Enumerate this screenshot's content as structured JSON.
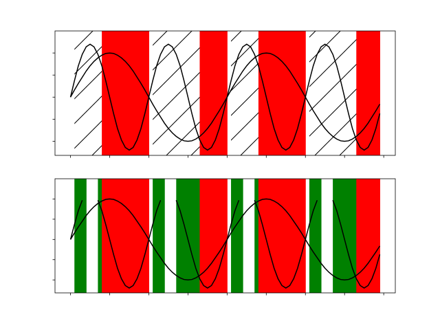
{
  "chart_data": [
    {
      "type": "line",
      "above_color": "#ff0000",
      "below_hatch": "/",
      "x": [
        0,
        0.025,
        0.05,
        0.075,
        0.1,
        0.125,
        0.15,
        0.175,
        0.2,
        0.225,
        0.25,
        0.275,
        0.3,
        0.325,
        0.35,
        0.375,
        0.4,
        0.425,
        0.45,
        0.475,
        0.5,
        0.525,
        0.55,
        0.575,
        0.6,
        0.625,
        0.65,
        0.675,
        0.7,
        0.725,
        0.75,
        0.775,
        0.8,
        0.825,
        0.85,
        0.875,
        0.9,
        0.925,
        0.95,
        0.975,
        1,
        1.025,
        1.05,
        1.075,
        1.1,
        1.125,
        1.15,
        1.175,
        1.2,
        1.225,
        1.25,
        1.275,
        1.3,
        1.325,
        1.35,
        1.375,
        1.4,
        1.425,
        1.45,
        1.475,
        1.5,
        1.525,
        1.55,
        1.575,
        1.6,
        1.625,
        1.65,
        1.675,
        1.7,
        1.725,
        1.75,
        1.775,
        1.8,
        1.825,
        1.85,
        1.875,
        1.9,
        1.925,
        1.95,
        1.975
      ],
      "series": [
        {
          "color": "#000000",
          "values": [
            0,
            0.16,
            0.31,
            0.45,
            0.59,
            0.71,
            0.81,
            0.89,
            0.95,
            0.99,
            1,
            0.99,
            0.95,
            0.89,
            0.81,
            0.71,
            0.59,
            0.45,
            0.31,
            0.16,
            0,
            -0.16,
            -0.31,
            -0.45,
            -0.59,
            -0.71,
            -0.81,
            -0.89,
            -0.95,
            -0.99,
            -1,
            -0.99,
            -0.95,
            -0.89,
            -0.81,
            -0.71,
            -0.59,
            -0.45,
            -0.31,
            -0.16,
            0,
            0.16,
            0.31,
            0.45,
            0.59,
            0.71,
            0.81,
            0.89,
            0.95,
            0.99,
            1,
            0.99,
            0.95,
            0.89,
            0.81,
            0.71,
            0.59,
            0.45,
            0.31,
            0.16,
            0,
            -0.16,
            -0.31,
            -0.45,
            -0.59,
            -0.71,
            -0.81,
            -0.89,
            -0.95,
            -0.99,
            -1,
            -0.99,
            -0.95,
            -0.89,
            -0.81,
            -0.71,
            -0.59,
            -0.45,
            -0.31,
            -0.16
          ]
        },
        {
          "color": "#000000",
          "values": [
            0,
            0.37,
            0.71,
            0.97,
            1.14,
            1.2,
            1.14,
            0.97,
            0.71,
            0.37,
            0,
            -0.37,
            -0.71,
            -0.97,
            -1.14,
            -1.2,
            -1.14,
            -0.97,
            -0.71,
            -0.37,
            0,
            0.37,
            0.71,
            0.97,
            1.14,
            1.2,
            1.14,
            0.97,
            0.71,
            0.37,
            0,
            -0.37,
            -0.71,
            -0.97,
            -1.14,
            -1.2,
            -1.14,
            -0.97,
            -0.71,
            -0.37,
            0,
            0.37,
            0.71,
            0.97,
            1.14,
            1.2,
            1.14,
            0.97,
            0.71,
            0.37,
            0,
            -0.37,
            -0.71,
            -0.97,
            -1.14,
            -1.2,
            -1.14,
            -0.97,
            -0.71,
            -0.37,
            0,
            0.37,
            0.71,
            0.97,
            1.14,
            1.2,
            1.14,
            0.97,
            0.71,
            0.37,
            0,
            -0.37,
            -0.71,
            -0.97,
            -1.14,
            -1.2,
            -1.14,
            -0.97,
            -0.71,
            -0.37
          ]
        }
      ],
      "xlim": [
        -0.099,
        2.074
      ],
      "xticks": [
        0,
        0.25,
        0.5,
        0.75,
        1,
        1.25,
        1.5,
        1.75,
        2
      ],
      "ylim": [
        -1.32,
        1.5
      ],
      "yticks": [
        -1,
        -0.5,
        0,
        0.5,
        1
      ]
    },
    {
      "type": "line",
      "above_color": "#ff0000",
      "below_color": "#008000",
      "x": [
        0,
        0.025,
        0.05,
        0.075,
        0.1,
        0.125,
        0.15,
        0.175,
        0.2,
        0.225,
        0.25,
        0.275,
        0.3,
        0.325,
        0.35,
        0.375,
        0.4,
        0.425,
        0.45,
        0.475,
        0.5,
        0.525,
        0.55,
        0.575,
        0.6,
        0.625,
        0.65,
        0.675,
        0.7,
        0.725,
        0.75,
        0.775,
        0.8,
        0.825,
        0.85,
        0.875,
        0.9,
        0.925,
        0.95,
        0.975,
        1,
        1.025,
        1.05,
        1.075,
        1.1,
        1.125,
        1.15,
        1.175,
        1.2,
        1.225,
        1.25,
        1.275,
        1.3,
        1.325,
        1.35,
        1.375,
        1.4,
        1.425,
        1.45,
        1.475,
        1.5,
        1.525,
        1.55,
        1.575,
        1.6,
        1.625,
        1.65,
        1.675,
        1.7,
        1.725,
        1.75,
        1.775,
        1.8,
        1.825,
        1.85,
        1.875,
        1.9,
        1.925,
        1.95,
        1.975
      ],
      "series": [
        {
          "color": "#000000",
          "values": [
            0,
            0.16,
            0.31,
            0.45,
            0.59,
            0.71,
            0.81,
            0.89,
            0.95,
            0.99,
            1,
            0.99,
            0.95,
            0.89,
            0.81,
            0.71,
            0.59,
            0.45,
            0.31,
            0.16,
            0,
            -0.16,
            -0.31,
            -0.45,
            -0.59,
            -0.71,
            -0.81,
            -0.89,
            -0.95,
            -0.99,
            -1,
            -0.99,
            -0.95,
            -0.89,
            -0.81,
            -0.71,
            -0.59,
            -0.45,
            -0.31,
            -0.16,
            0,
            0.16,
            0.31,
            0.45,
            0.59,
            0.71,
            0.81,
            0.89,
            0.95,
            0.99,
            1,
            0.99,
            0.95,
            0.89,
            0.81,
            0.71,
            0.59,
            0.45,
            0.31,
            0.16,
            0,
            -0.16,
            -0.31,
            -0.45,
            -0.59,
            -0.71,
            -0.81,
            -0.89,
            -0.95,
            -0.99,
            -1,
            -0.99,
            -0.95,
            -0.89,
            -0.81,
            -0.71,
            -0.59,
            -0.45,
            -0.31,
            -0.16
          ]
        },
        {
          "color": "#000000",
          "values": [
            0,
            0.37,
            0.71,
            0.97,
            null,
            null,
            null,
            0.97,
            0.71,
            0.37,
            0,
            -0.37,
            -0.71,
            -0.97,
            -1.14,
            -1.2,
            -1.14,
            -0.97,
            -0.71,
            -0.37,
            0,
            0.37,
            0.71,
            0.97,
            null,
            null,
            null,
            0.97,
            0.71,
            0.37,
            0,
            -0.37,
            -0.71,
            -0.97,
            -1.14,
            -1.2,
            -1.14,
            -0.97,
            -0.71,
            -0.37,
            0,
            0.37,
            0.71,
            0.97,
            null,
            null,
            null,
            0.97,
            0.71,
            0.37,
            0,
            -0.37,
            -0.71,
            -0.97,
            -1.14,
            -1.2,
            -1.14,
            -0.97,
            -0.71,
            -0.37,
            0,
            0.37,
            0.71,
            0.97,
            null,
            null,
            null,
            0.97,
            0.71,
            0.37,
            0,
            -0.37,
            -0.71,
            -0.97,
            -1.14,
            -1.2,
            -1.14,
            -0.97,
            -0.71,
            -0.37
          ]
        }
      ],
      "xlim": [
        -0.099,
        2.074
      ],
      "xticks": [
        0,
        0.25,
        0.5,
        0.75,
        1,
        1.25,
        1.5,
        1.75,
        2
      ],
      "ylim": [
        -1.32,
        1.5
      ],
      "yticks": [
        -1,
        -0.5,
        0,
        0.5,
        1
      ]
    }
  ]
}
